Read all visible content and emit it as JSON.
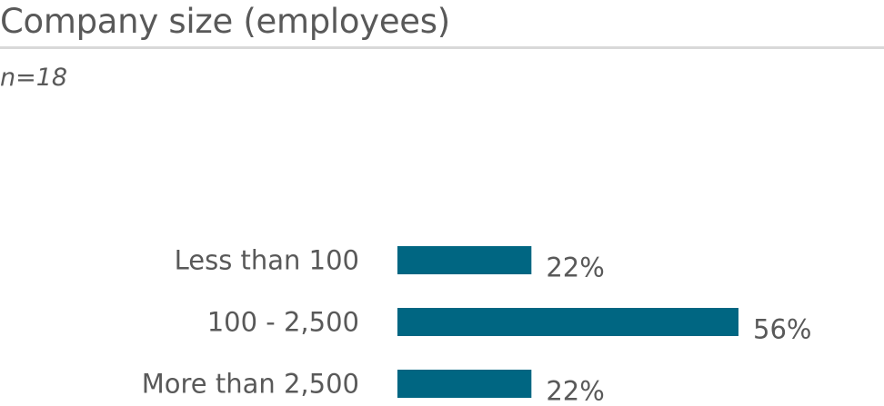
{
  "title": "Company size (employees)",
  "subtitle": "n=18",
  "colors": {
    "bar": "#006682",
    "text": "#595959",
    "rule": "#d9d9d9"
  },
  "chart_data": {
    "type": "bar",
    "orientation": "horizontal",
    "categories": [
      "Less than 100",
      "100 - 2,500",
      "More than 2,500"
    ],
    "values": [
      22,
      56,
      22
    ],
    "value_labels": [
      "22%",
      "56%",
      "22%"
    ],
    "unit": "%",
    "grid": false,
    "legend": "none"
  }
}
